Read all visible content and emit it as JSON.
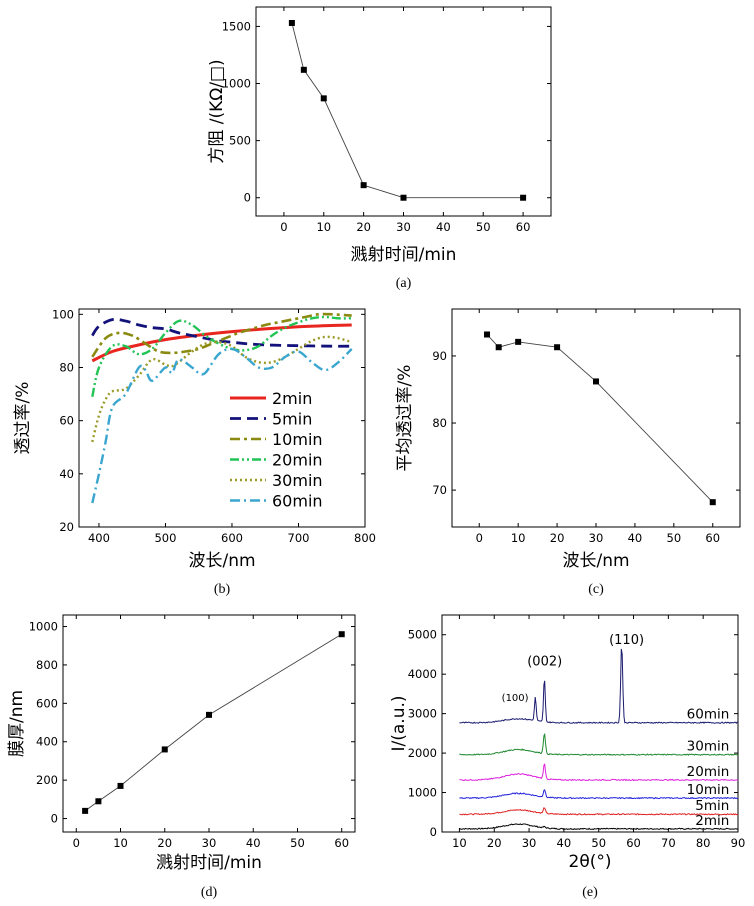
{
  "chart_data": [
    {
      "id": "a",
      "type": "line",
      "caption": "(a)",
      "xlabel": "溅射时间/min",
      "ylabel": "方阻 /(KΩ/□)",
      "xlim": [
        -7,
        67
      ],
      "ylim": [
        -160,
        1670
      ],
      "xticks": [
        0,
        10,
        20,
        30,
        40,
        50,
        60
      ],
      "yticks": [
        0,
        500,
        1000,
        1500
      ],
      "series": [
        {
          "name": "sheet resistance",
          "color": "#000000",
          "style": "marker-line",
          "x": [
            2,
            5,
            10,
            20,
            30,
            60
          ],
          "y": [
            1530,
            1120,
            870,
            110,
            0,
            0
          ]
        }
      ]
    },
    {
      "id": "b",
      "type": "line",
      "caption": "(b)",
      "xlabel": "波长/nm",
      "ylabel": "透过率/%",
      "xlim": [
        370,
        800
      ],
      "ylim": [
        20,
        102
      ],
      "xticks": [
        400,
        500,
        600,
        700,
        800
      ],
      "yticks": [
        20,
        40,
        60,
        80,
        100
      ],
      "legend": "center-right",
      "series": [
        {
          "name": "2min",
          "color": "#e8251e",
          "dash": "",
          "width": 3,
          "x": [
            390,
            420,
            460,
            500,
            550,
            600,
            650,
            700,
            750,
            780
          ],
          "y": [
            82.5,
            86,
            88.5,
            90.5,
            92.2,
            93.5,
            94.5,
            95.3,
            95.8,
            96
          ]
        },
        {
          "name": "5min",
          "color": "#12127a",
          "dash": "11 6",
          "width": 2.8,
          "x": [
            390,
            400,
            420,
            440,
            460,
            480,
            500,
            520,
            540,
            560,
            580,
            600,
            620,
            650,
            700,
            750,
            780
          ],
          "y": [
            92,
            95.5,
            98,
            97.5,
            96,
            95,
            94.5,
            93,
            92,
            91,
            90,
            89.5,
            89,
            88.5,
            88.2,
            88,
            88
          ]
        },
        {
          "name": "10min",
          "color": "#8a8a10",
          "dash": "10 4 3 4",
          "width": 2.6,
          "x": [
            390,
            410,
            430,
            450,
            470,
            490,
            510,
            530,
            550,
            570,
            590,
            610,
            630,
            650,
            670,
            690,
            710,
            730,
            750,
            780
          ],
          "y": [
            84,
            91,
            93,
            92,
            89,
            86,
            85.5,
            86,
            87,
            89,
            91,
            93,
            94.5,
            96,
            97,
            98,
            99,
            100,
            100,
            99.5
          ]
        },
        {
          "name": "20min",
          "color": "#22c455",
          "dash": "9 3 2 3 2 3",
          "width": 2.4,
          "x": [
            390,
            400,
            420,
            440,
            460,
            480,
            500,
            520,
            540,
            560,
            580,
            600,
            620,
            640,
            660,
            680,
            700,
            720,
            740,
            760,
            780
          ],
          "y": [
            69,
            80,
            88,
            88,
            85,
            87,
            93,
            97.5,
            96,
            92,
            89,
            87,
            86.5,
            88,
            92,
            95,
            97,
            98.5,
            99,
            98.5,
            98.5
          ]
        },
        {
          "name": "30min",
          "color": "#9a9a28",
          "dash": "2 3",
          "width": 2.4,
          "x": [
            390,
            400,
            410,
            420,
            440,
            460,
            480,
            500,
            510,
            520,
            540,
            560,
            580,
            600,
            620,
            640,
            660,
            680,
            700,
            720,
            740,
            760,
            780
          ],
          "y": [
            52,
            62,
            68,
            71,
            72,
            77,
            83,
            81,
            80.5,
            82,
            86,
            89,
            89.5,
            88,
            84,
            82,
            82,
            84,
            87,
            90,
            91.5,
            91,
            89.5
          ]
        },
        {
          "name": "60min",
          "color": "#3aa6cf",
          "dash": "10 4 2 4",
          "width": 2.4,
          "x": [
            390,
            400,
            410,
            420,
            440,
            460,
            470,
            480,
            500,
            510,
            520,
            540,
            550,
            560,
            580,
            600,
            620,
            640,
            660,
            680,
            700,
            720,
            740,
            760,
            780
          ],
          "y": [
            29,
            40,
            52,
            65,
            70,
            80,
            79,
            75,
            80,
            78,
            83,
            80,
            78,
            78,
            85,
            87,
            84,
            80,
            80,
            84,
            86,
            82,
            79,
            82,
            87
          ]
        }
      ]
    },
    {
      "id": "c",
      "type": "line",
      "caption": "(c)",
      "xlabel": "波长/nm",
      "ylabel": "平均透过率/%",
      "xlim": [
        -7,
        67
      ],
      "ylim": [
        64.5,
        97
      ],
      "xticks": [
        0,
        10,
        20,
        30,
        40,
        50,
        60
      ],
      "yticks": [
        70,
        80,
        90
      ],
      "series": [
        {
          "name": "average transmittance",
          "color": "#000000",
          "style": "marker-line",
          "x": [
            2,
            5,
            10,
            20,
            30,
            60
          ],
          "y": [
            93.2,
            91.3,
            92.1,
            91.3,
            86.2,
            68.2
          ]
        }
      ]
    },
    {
      "id": "d",
      "type": "line",
      "caption": "(d)",
      "xlabel": "溅射时间/min",
      "ylabel": "膜厚/nm",
      "xlim": [
        -3,
        63
      ],
      "ylim": [
        -70,
        1060
      ],
      "xticks": [
        0,
        10,
        20,
        30,
        40,
        50,
        60
      ],
      "yticks": [
        0,
        200,
        400,
        600,
        800,
        1000
      ],
      "series": [
        {
          "name": "film thickness",
          "color": "#000000",
          "style": "marker-line",
          "x": [
            2,
            5,
            10,
            20,
            30,
            60
          ],
          "y": [
            40,
            90,
            170,
            360,
            540,
            960
          ]
        }
      ]
    },
    {
      "id": "e",
      "type": "line",
      "caption": "(e)",
      "xlabel": "2θ(°)",
      "ylabel": "I/(a.u.)",
      "xlim": [
        5,
        90
      ],
      "ylim": [
        0,
        5500
      ],
      "xticks": [
        10,
        20,
        30,
        40,
        50,
        60,
        70,
        80,
        90
      ],
      "yticks": [
        0,
        1000,
        2000,
        3000,
        4000,
        5000
      ],
      "annotations": [
        {
          "text": "(100)",
          "x": 26,
          "y": 3320
        },
        {
          "text": "(002)",
          "x": 34.5,
          "y": 4220
        },
        {
          "text": "(110)",
          "x": 58,
          "y": 4760
        }
      ],
      "series": [
        {
          "name": "2min",
          "color": "#000000",
          "baseline": 80,
          "bumps": [
            [
              27,
              120,
              6
            ]
          ],
          "peaks": [
            [
              34.4,
              30,
              0.4
            ]
          ]
        },
        {
          "name": "5min",
          "color": "#e02020",
          "baseline": 450,
          "bumps": [
            [
              27,
              110,
              6
            ]
          ],
          "peaks": [
            [
              34.4,
              150,
              0.4
            ]
          ]
        },
        {
          "name": "10min",
          "color": "#2222dd",
          "baseline": 860,
          "bumps": [
            [
              27,
              120,
              6
            ]
          ],
          "peaks": [
            [
              34.4,
              200,
              0.4
            ]
          ]
        },
        {
          "name": "20min",
          "color": "#dd22dd",
          "baseline": 1320,
          "bumps": [
            [
              27,
              150,
              6
            ]
          ],
          "peaks": [
            [
              34.4,
              380,
              0.4
            ]
          ]
        },
        {
          "name": "30min",
          "color": "#208a30",
          "baseline": 1960,
          "bumps": [
            [
              27,
              130,
              6
            ]
          ],
          "peaks": [
            [
              34.4,
              530,
              0.4
            ]
          ]
        },
        {
          "name": "60min",
          "color": "#1a1a70",
          "baseline": 2770,
          "bumps": [
            [
              27,
              100,
              6
            ]
          ],
          "peaks": [
            [
              31.8,
              600,
              0.35
            ],
            [
              34.4,
              1120,
              0.35
            ],
            [
              56.6,
              2000,
              0.4
            ]
          ]
        }
      ]
    }
  ]
}
